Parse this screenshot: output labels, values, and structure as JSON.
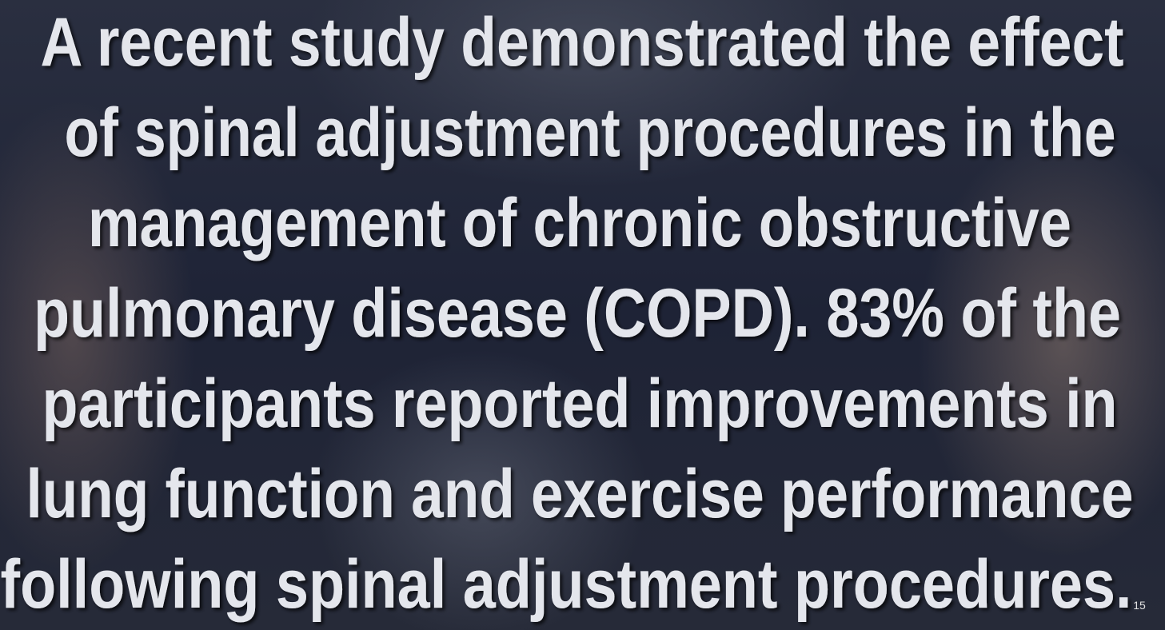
{
  "slide": {
    "body_lines": [
      "A recent study demonstrated the effect",
      "of spinal adjustment procedures in the",
      "management of chronic obstructive",
      "pulmonary disease (COPD). 83% of the",
      "participants reported improvements in",
      "lung function and exercise performance",
      "following spinal adjustment procedures."
    ],
    "page_number": "15"
  }
}
